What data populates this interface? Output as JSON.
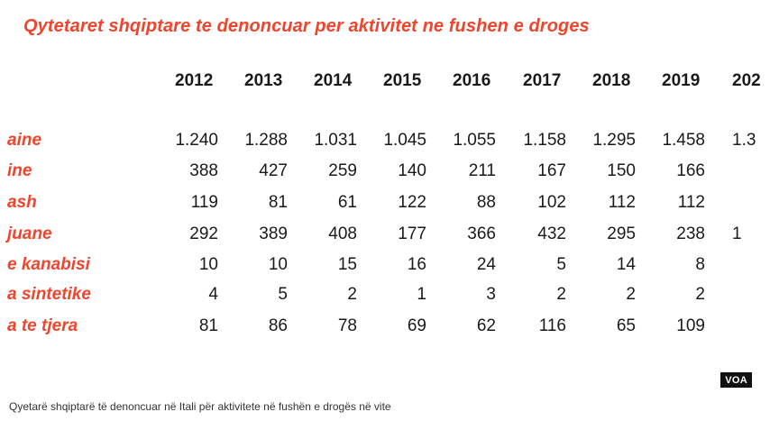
{
  "figure": {
    "title": "Qytetaret shqiptare te denoncuar per aktivitet ne fushen e droges",
    "years": [
      "2012",
      "2013",
      "2014",
      "2015",
      "2016",
      "2017",
      "2018",
      "2019",
      "202"
    ],
    "rows": [
      {
        "label": "aine",
        "values": [
          "1.240",
          "1.288",
          "1.031",
          "1.045",
          "1.055",
          "1.158",
          "1.295",
          "1.458",
          "1.3"
        ]
      },
      {
        "label": "ine",
        "values": [
          "388",
          "427",
          "259",
          "140",
          "211",
          "167",
          "150",
          "166",
          ""
        ]
      },
      {
        "label": "ash",
        "values": [
          "119",
          "81",
          "61",
          "122",
          "88",
          "102",
          "112",
          "112",
          ""
        ]
      },
      {
        "label": "juane",
        "values": [
          "292",
          "389",
          "408",
          "177",
          "366",
          "432",
          "295",
          "238",
          "1"
        ]
      },
      {
        "label": "e kanabisi",
        "values": [
          "10",
          "10",
          "15",
          "16",
          "24",
          "5",
          "14",
          "8",
          ""
        ]
      },
      {
        "label": "a sintetike",
        "values": [
          "4",
          "5",
          "2",
          "1",
          "3",
          "2",
          "2",
          "2",
          ""
        ]
      },
      {
        "label": "a te tjera",
        "values": [
          "81",
          "86",
          "78",
          "69",
          "62",
          "116",
          "65",
          "109",
          ""
        ]
      }
    ],
    "badge": "VOA"
  },
  "caption": "Qyetarë shqiptarë të denoncuar në Itali për aktivitete në fushën e drogës në vite"
}
